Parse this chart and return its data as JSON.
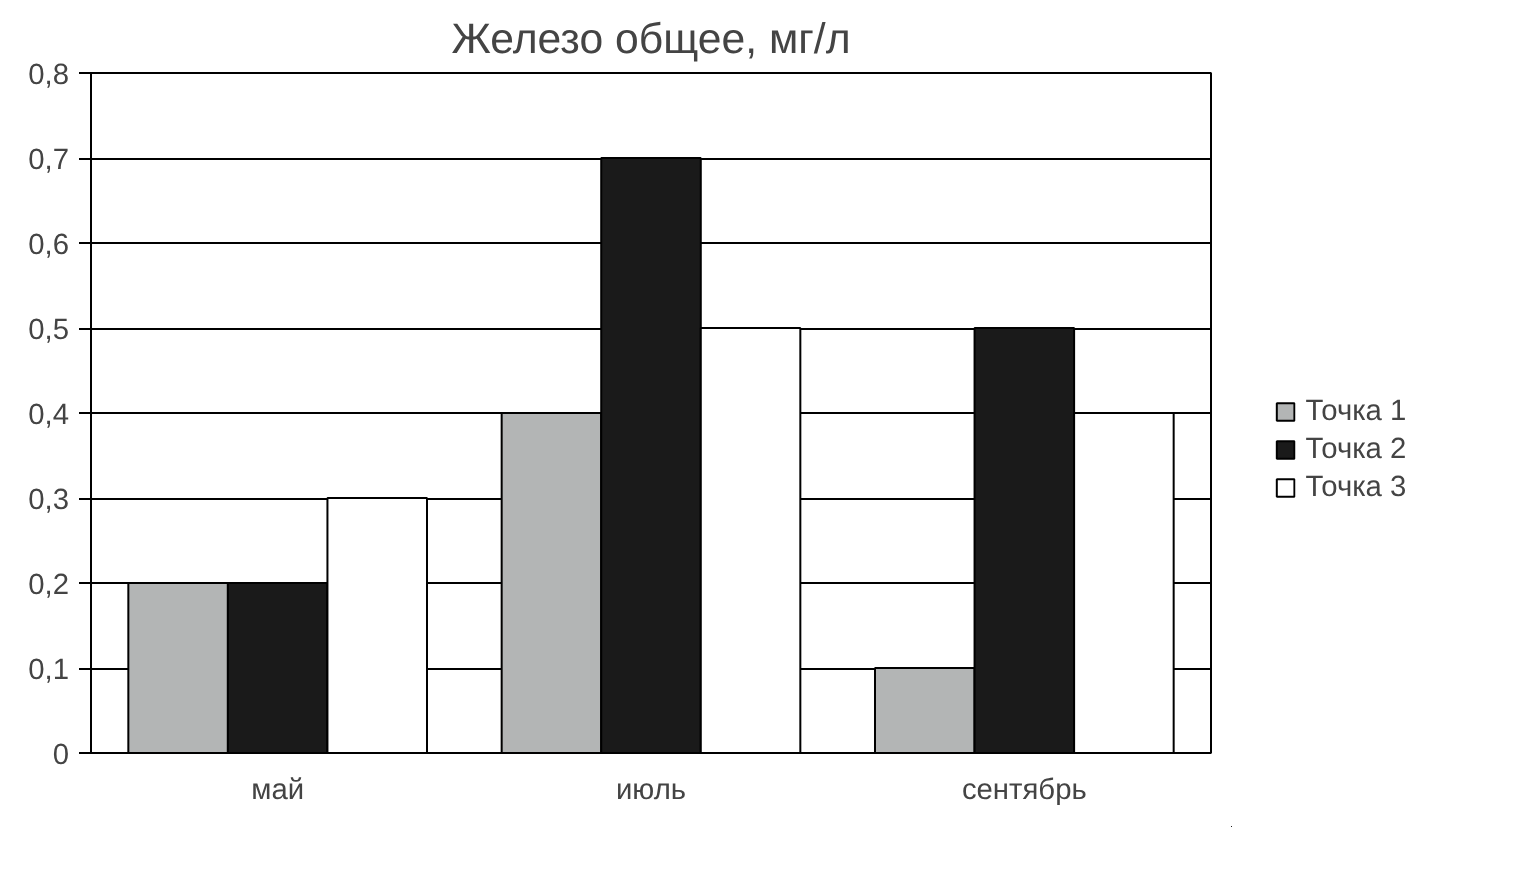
{
  "chart_data": {
    "type": "bar",
    "title": "Железо общее, мг/л",
    "categories": [
      "май",
      "июль",
      "сентябрь"
    ],
    "series": [
      {
        "name": "Точка 1",
        "color": "#b3b5b5",
        "values": [
          0.2,
          0.4,
          0.1
        ]
      },
      {
        "name": "Точка 2",
        "color": "#1a1a1a",
        "values": [
          0.2,
          0.7,
          0.5
        ]
      },
      {
        "name": "Точка 3",
        "color": "#ffffff",
        "values": [
          0.3,
          0.5,
          0.4
        ]
      }
    ],
    "ylim": [
      0,
      0.8
    ],
    "yticks": [
      {
        "value": 0,
        "label": "0"
      },
      {
        "value": 0.1,
        "label": "0,1"
      },
      {
        "value": 0.2,
        "label": "0,2"
      },
      {
        "value": 0.3,
        "label": "0,3"
      },
      {
        "value": 0.4,
        "label": "0,4"
      },
      {
        "value": 0.5,
        "label": "0,5"
      },
      {
        "value": 0.6,
        "label": "0,6"
      },
      {
        "value": 0.7,
        "label": "0,7"
      },
      {
        "value": 0.8,
        "label": "0,8"
      }
    ],
    "grid": "y",
    "legend": "right"
  }
}
